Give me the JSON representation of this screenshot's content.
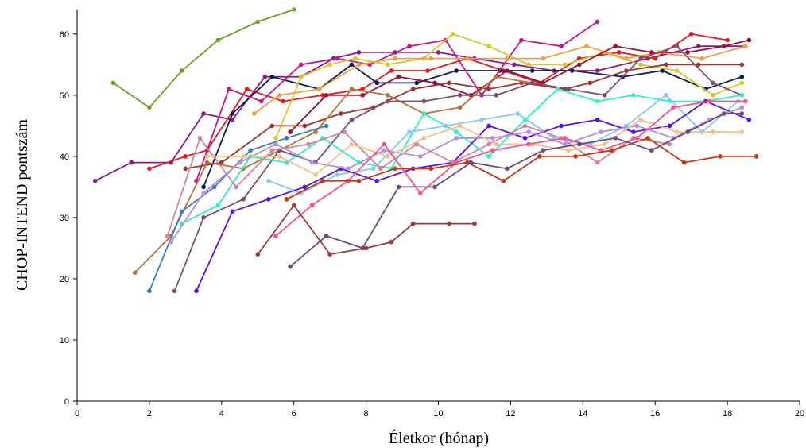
{
  "chart_data": {
    "type": "line",
    "xlabel": "Életkor (hónap)",
    "ylabel": "CHOP-INTEND pontszám",
    "xlim": [
      0,
      20
    ],
    "ylim": [
      0,
      64
    ],
    "x_ticks": [
      "0",
      "2",
      "4",
      "6",
      "8",
      "10",
      "12",
      "14",
      "16",
      "18",
      "20"
    ],
    "y_ticks": [
      "0",
      "10",
      "20",
      "30",
      "40",
      "50",
      "60"
    ],
    "grid": false,
    "series": [
      {
        "color": "#6aa121",
        "x": [
          1.0,
          2.0,
          2.9,
          3.9,
          5.0,
          6.0
        ],
        "y": [
          52,
          48,
          54,
          59,
          62,
          64
        ]
      },
      {
        "color": "#8b1a8b",
        "x": [
          0.5,
          1.5,
          2.6,
          3.5,
          4.3,
          5.2,
          6.2,
          7.1,
          7.8,
          8.8,
          10.0,
          11.0,
          12.1,
          13.2,
          14.4,
          15.8,
          17.2,
          18.5
        ],
        "y": [
          36,
          39,
          39,
          47,
          46,
          53,
          53,
          56,
          57,
          57,
          57,
          56,
          55,
          54,
          54,
          56,
          58,
          58
        ]
      },
      {
        "color": "#e81b1b",
        "x": [
          2.0,
          3.0,
          3.6,
          4.7,
          5.7,
          6.8,
          7.9,
          8.7,
          9.7,
          10.8,
          11.8,
          12.8,
          13.9,
          15.0,
          16.0,
          17.0,
          18.0
        ],
        "y": [
          38,
          40,
          41,
          51,
          49,
          50,
          51,
          54,
          54,
          56,
          54,
          52,
          56,
          57,
          56,
          60,
          59
        ]
      },
      {
        "color": "#0b1d51",
        "x": [
          3.5,
          4.3,
          5.4,
          6.7,
          7.6,
          8.3,
          9.4,
          10.5,
          11.7,
          12.6,
          13.7,
          15.1,
          16.2,
          17.4,
          18.4
        ],
        "y": [
          35,
          47,
          53,
          51,
          55,
          52,
          52,
          54,
          54,
          54,
          54,
          53,
          54,
          51,
          53
        ]
      },
      {
        "color": "#c71585",
        "x": [
          3.3,
          4.2,
          5.1,
          6.2,
          7.2,
          8.1,
          9.2,
          10.2,
          11.2,
          12.3,
          13.4,
          14.4
        ],
        "y": [
          36,
          51,
          49,
          55,
          56,
          55,
          58,
          59,
          50,
          59,
          58,
          62
        ]
      },
      {
        "color": "#d4c82c",
        "x": [
          5.5,
          6.2,
          7.0,
          7.7,
          8.6,
          9.6,
          10.4,
          11.4,
          12.5,
          13.5,
          14.6,
          15.6,
          16.6,
          17.6,
          18.4
        ],
        "y": [
          43,
          53,
          55,
          56,
          55,
          56,
          60,
          58,
          55,
          55,
          57,
          55,
          54,
          50,
          52
        ]
      },
      {
        "color": "#f4a040",
        "x": [
          4.9,
          5.6,
          6.7,
          7.8,
          8.8,
          9.8,
          10.8,
          11.9,
          12.9,
          14.1,
          15.2,
          16.1,
          17.3,
          18.5
        ],
        "y": [
          47,
          50,
          51,
          55,
          56,
          56,
          56,
          56,
          56,
          58,
          56,
          57,
          56,
          58
        ]
      },
      {
        "color": "#a0352d",
        "x": [
          3.0,
          4.0,
          5.4,
          6.3,
          7.3,
          8.2,
          9.3,
          10.3,
          11.4,
          12.3,
          13.5,
          14.2,
          15.2,
          16.3,
          17.2,
          18.4
        ],
        "y": [
          38,
          39,
          45,
          45,
          47,
          48,
          51,
          52,
          51,
          52,
          51,
          52,
          54,
          55,
          55,
          55
        ]
      },
      {
        "color": "#9b1230",
        "x": [
          5.9,
          6.9,
          7.9,
          8.9,
          9.9,
          10.9,
          11.9,
          12.9,
          13.9,
          14.9,
          15.9,
          16.9,
          17.9,
          18.6
        ],
        "y": [
          44,
          50,
          50,
          53,
          52,
          50,
          54,
          52,
          55,
          58,
          57,
          57,
          58,
          59
        ]
      },
      {
        "color": "#b8723a",
        "x": [
          1.6,
          2.6,
          3.6,
          4.6,
          5.6,
          6.6,
          7.6,
          8.6,
          9.6,
          10.6,
          11.6,
          12.6
        ],
        "y": [
          21,
          27,
          39,
          38,
          41,
          44,
          51,
          50,
          47,
          48,
          53,
          52
        ]
      },
      {
        "color": "#7a4f6e",
        "x": [
          2.7,
          3.5,
          4.6,
          5.6,
          6.6,
          7.6,
          8.6,
          9.6,
          10.6,
          11.6,
          12.6,
          13.6,
          14.6,
          15.6,
          16.6,
          17.6,
          18.4
        ],
        "y": [
          18,
          30,
          33,
          41,
          39,
          46,
          49,
          49,
          50,
          50,
          52,
          51,
          50,
          56,
          58,
          52,
          50
        ]
      },
      {
        "color": "#29f0c8",
        "x": [
          2.9,
          3.9,
          4.8,
          5.8,
          6.8,
          7.8,
          8.7,
          9.6,
          10.5,
          11.4,
          12.4,
          13.3,
          14.4,
          15.4,
          16.4,
          17.4,
          18.4
        ],
        "y": [
          29,
          32,
          40,
          39,
          43,
          39,
          38,
          47,
          44,
          40,
          46,
          51,
          49,
          50,
          49,
          49,
          50
        ]
      },
      {
        "color": "#3b7dbf",
        "x": [
          2.0,
          2.9,
          3.8,
          4.8,
          5.8,
          6.9
        ],
        "y": [
          18,
          31,
          35,
          41,
          43,
          45
        ]
      },
      {
        "color": "#87c7f5",
        "x": [
          5.3,
          6.2,
          7.2,
          8.2,
          9.2,
          10.2,
          11.2,
          12.2,
          13.2,
          14.2,
          15.2,
          16.3,
          17.3,
          18.3
        ],
        "y": [
          36,
          34,
          37,
          38,
          44,
          45,
          46,
          47,
          43,
          42,
          45,
          50,
          44,
          49
        ]
      },
      {
        "color": "#5810e8",
        "x": [
          3.3,
          4.3,
          5.3,
          6.3,
          7.3,
          8.3,
          9.3,
          10.4,
          11.4,
          12.4,
          13.4,
          14.4,
          15.4,
          16.4,
          17.4,
          18.6
        ],
        "y": [
          18,
          31,
          33,
          35,
          38,
          36,
          38,
          39,
          45,
          43,
          45,
          46,
          44,
          45,
          49,
          46
        ]
      },
      {
        "color": "#d4849c",
        "x": [
          2.5,
          3.4,
          4.4,
          5.4,
          6.4,
          7.4,
          8.4,
          9.4,
          10.4,
          11.4,
          12.4,
          13.4,
          14.4,
          15.4,
          16.4
        ],
        "y": [
          27,
          43,
          35,
          41,
          42,
          44,
          38,
          42,
          39,
          42,
          45,
          43,
          39,
          43,
          42
        ]
      },
      {
        "color": "#b28fdc",
        "x": [
          2.6,
          3.5,
          4.5,
          5.5,
          6.5,
          7.5,
          8.5,
          9.5,
          10.5,
          11.5,
          12.5,
          13.5,
          14.5,
          15.5,
          16.5,
          17.5,
          18.4
        ],
        "y": [
          26,
          34,
          39,
          42,
          39,
          38,
          41,
          40,
          43,
          43,
          44,
          42,
          44,
          45,
          43,
          46,
          48
        ]
      },
      {
        "color": "#f9be84",
        "x": [
          3.6,
          4.6,
          5.6,
          6.6,
          7.6,
          8.6,
          9.6,
          10.6,
          11.6,
          12.6,
          13.6,
          14.6,
          15.6,
          16.6,
          17.6,
          18.4
        ],
        "y": [
          40,
          40,
          40,
          37,
          42,
          40,
          43,
          45,
          42,
          42,
          41,
          42,
          46,
          44,
          44,
          44
        ]
      },
      {
        "color": "#ff4f8b",
        "x": [
          5.5,
          6.5,
          7.5,
          8.5,
          9.5,
          10.5,
          11.5,
          12.5,
          13.5,
          14.5,
          15.5,
          16.5,
          17.5,
          18.5
        ],
        "y": [
          27,
          32,
          36,
          42,
          34,
          39,
          41,
          42,
          43,
          41,
          43,
          48,
          49,
          49
        ]
      },
      {
        "color": "#c23a0b",
        "x": [
          5.8,
          6.8,
          7.8,
          8.8,
          9.8,
          10.8,
          11.8,
          12.8,
          13.8,
          14.8,
          15.8,
          16.8,
          17.8,
          18.8
        ],
        "y": [
          33,
          36,
          36,
          38,
          38,
          39,
          36,
          40,
          40,
          41,
          43,
          39,
          40,
          40
        ]
      },
      {
        "color": "#6b4b78",
        "x": [
          5.9,
          6.9,
          7.9,
          8.9,
          9.9,
          10.9,
          11.9,
          12.9,
          13.9,
          14.9,
          15.9,
          16.9,
          17.9,
          18.4
        ],
        "y": [
          22,
          27,
          25,
          35,
          35,
          39,
          38,
          41,
          42,
          43,
          41,
          44,
          47,
          47
        ]
      },
      {
        "color": "#9a3a3a",
        "x": [
          5.0,
          6.0,
          7.0,
          8.0,
          8.7,
          9.3,
          10.3,
          11.0
        ],
        "y": [
          24,
          32,
          24,
          25,
          26,
          29,
          29,
          29
        ]
      }
    ]
  }
}
